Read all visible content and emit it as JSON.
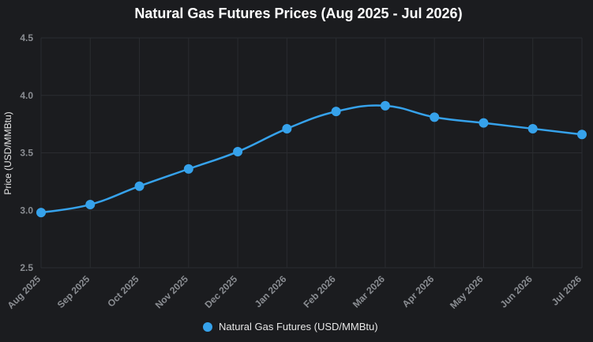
{
  "chart_data": {
    "type": "line",
    "title": "Natural Gas Futures Prices (Aug 2025 - Jul 2026)",
    "xlabel": "",
    "ylabel": "Price (USD/MMBtu)",
    "ylim": [
      2.5,
      4.5
    ],
    "yticks": [
      "2.5",
      "3.0",
      "3.5",
      "4.0",
      "4.5"
    ],
    "categories": [
      "Aug 2025",
      "Sep 2025",
      "Oct 2025",
      "Nov 2025",
      "Dec 2025",
      "Jan 2026",
      "Feb 2026",
      "Mar 2026",
      "Apr 2026",
      "May 2026",
      "Jun 2026",
      "Jul 2026"
    ],
    "series": [
      {
        "name": "Natural Gas Futures (USD/MMBtu)",
        "values": [
          2.98,
          3.05,
          3.21,
          3.36,
          3.51,
          3.71,
          3.86,
          3.91,
          3.81,
          3.76,
          3.71,
          3.66
        ],
        "color": "#36a2eb"
      }
    ],
    "grid": true,
    "legend": "bottom"
  }
}
